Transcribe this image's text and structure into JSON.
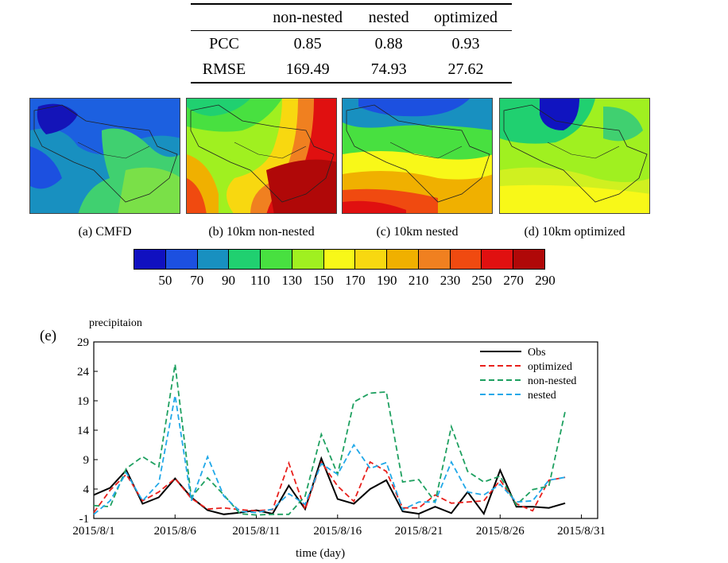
{
  "table": {
    "headers": [
      "",
      "non-nested",
      "nested",
      "optimized"
    ],
    "rows": [
      {
        "label": "PCC",
        "values": [
          "0.85",
          "0.88",
          "0.93"
        ]
      },
      {
        "label": "RMSE",
        "values": [
          "169.49",
          "74.93",
          "27.62"
        ]
      }
    ]
  },
  "maps": [
    {
      "caption": "(a) CMFD"
    },
    {
      "caption": "(b) 10km non-nested"
    },
    {
      "caption": "(c) 10km nested"
    },
    {
      "caption": "(d) 10km optimized"
    }
  ],
  "colorbar": {
    "colors": [
      "#1010c0",
      "#1c50e0",
      "#1890c0",
      "#20d070",
      "#48e040",
      "#a0f020",
      "#f8f818",
      "#f8d810",
      "#f0b000",
      "#f08020",
      "#f04a10",
      "#e01010",
      "#b00808"
    ],
    "ticks": [
      "50",
      "70",
      "90",
      "110",
      "130",
      "150",
      "170",
      "190",
      "210",
      "230",
      "250",
      "270",
      "290"
    ]
  },
  "chart_data": {
    "type": "line",
    "panel_label": "(e)",
    "ylabel": "precipitaion",
    "xlabel": "time (day)",
    "ylim": [
      -1,
      29
    ],
    "yticks": [
      "29",
      "24",
      "19",
      "14",
      "9",
      "4",
      "-1"
    ],
    "xlim_days": [
      1,
      32
    ],
    "xticks": [
      "2015/8/1",
      "2015/8/6",
      "2015/8/11",
      "2015/8/16",
      "2015/8/21",
      "2015/8/26",
      "2015/8/31"
    ],
    "legend_position": "top-right",
    "series": [
      {
        "name": "Obs",
        "color": "#000000",
        "dash": "solid",
        "values": [
          3.0,
          4.2,
          7.2,
          1.5,
          2.6,
          5.8,
          2.6,
          0.4,
          -0.3,
          0.0,
          0.4,
          -0.2,
          4.6,
          0.6,
          9.2,
          2.3,
          1.5,
          4.0,
          5.5,
          0.2,
          -0.2,
          1.0,
          -0.1,
          3.5,
          -0.2,
          7.2,
          1.0,
          1.0,
          0.8,
          1.6
        ]
      },
      {
        "name": "optimized",
        "color": "#e8201c",
        "dash": "dashed",
        "values": [
          0.0,
          3.8,
          6.5,
          2.0,
          3.5,
          5.8,
          2.4,
          0.6,
          0.8,
          0.5,
          0.3,
          0.5,
          8.4,
          0.5,
          8.6,
          4.5,
          1.9,
          8.6,
          7.0,
          0.8,
          0.8,
          3.0,
          1.6,
          1.8,
          2.0,
          5.5,
          1.5,
          0.3,
          5.5,
          6.0
        ]
      },
      {
        "name": "non-nested",
        "color": "#1ea060",
        "dash": "dashed",
        "values": [
          1.2,
          1.0,
          7.5,
          9.5,
          7.8,
          25.2,
          2.6,
          5.9,
          3.0,
          -0.2,
          -0.4,
          -0.3,
          -0.3,
          2.8,
          13.3,
          6.5,
          18.8,
          20.3,
          20.5,
          5.2,
          5.6,
          1.8,
          14.6,
          7.0,
          5.2,
          6.2,
          1.3,
          3.9,
          4.5,
          17.2
        ]
      },
      {
        "name": "nested",
        "color": "#20a8e8",
        "dash": "dashed",
        "values": [
          -0.3,
          2.0,
          6.8,
          2.0,
          5.0,
          19.9,
          2.0,
          9.5,
          2.8,
          0.2,
          0.0,
          0.6,
          3.2,
          1.4,
          8.3,
          6.5,
          11.5,
          7.5,
          8.5,
          0.5,
          1.8,
          1.8,
          8.6,
          3.5,
          3.0,
          4.8,
          1.8,
          2.0,
          5.5,
          6.0
        ]
      }
    ]
  }
}
